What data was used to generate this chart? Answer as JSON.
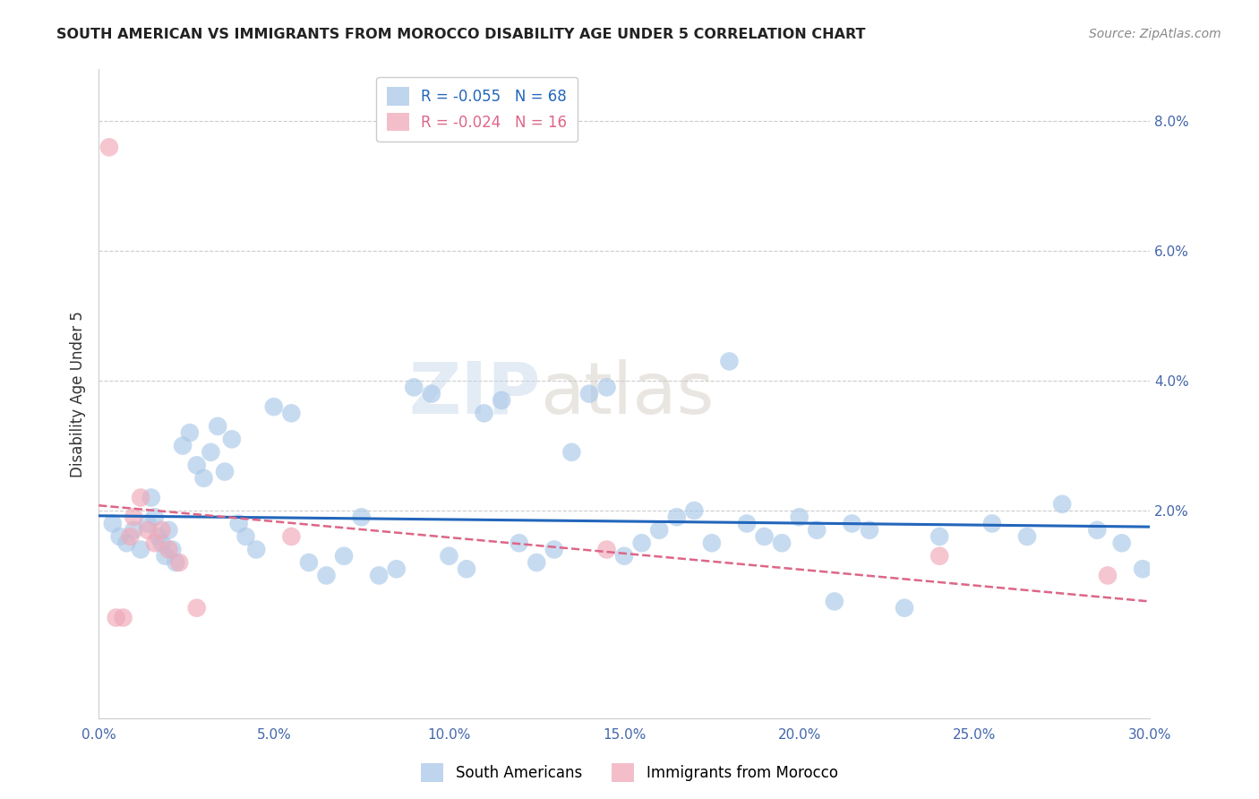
{
  "title": "SOUTH AMERICAN VS IMMIGRANTS FROM MOROCCO DISABILITY AGE UNDER 5 CORRELATION CHART",
  "source": "Source: ZipAtlas.com",
  "ylabel": "Disability Age Under 5",
  "x_tick_labels": [
    "0.0%",
    "5.0%",
    "10.0%",
    "15.0%",
    "20.0%",
    "25.0%",
    "30.0%"
  ],
  "x_tick_values": [
    0,
    5,
    10,
    15,
    20,
    25,
    30
  ],
  "y_tick_labels": [
    "2.0%",
    "4.0%",
    "6.0%",
    "8.0%"
  ],
  "y_tick_values": [
    2,
    4,
    6,
    8
  ],
  "xlim": [
    0,
    30
  ],
  "ylim": [
    -1.2,
    8.8
  ],
  "ymin_display": 0,
  "ymax_display": 8,
  "blue_R": -0.055,
  "blue_N": 68,
  "pink_R": -0.024,
  "pink_N": 16,
  "blue_color": "#aac8e8",
  "pink_color": "#f0a8b8",
  "blue_line_color": "#2266bb",
  "pink_line_color": "#dd6688",
  "legend_label_blue": "South Americans",
  "legend_label_pink": "Immigrants from Morocco",
  "watermark_zip": "ZIP",
  "watermark_atlas": "atlas",
  "blue_x": [
    0.4,
    0.6,
    0.8,
    1.0,
    1.2,
    1.4,
    1.5,
    1.6,
    1.7,
    1.8,
    1.9,
    2.0,
    2.1,
    2.2,
    2.4,
    2.6,
    2.8,
    3.0,
    3.2,
    3.4,
    3.6,
    3.8,
    4.0,
    4.2,
    4.5,
    5.0,
    5.5,
    6.0,
    6.5,
    7.0,
    7.5,
    8.0,
    8.5,
    9.0,
    9.5,
    10.0,
    10.5,
    11.0,
    11.5,
    12.0,
    12.5,
    13.0,
    13.5,
    14.0,
    14.5,
    15.0,
    15.5,
    16.0,
    16.5,
    17.0,
    17.5,
    18.0,
    18.5,
    19.0,
    19.5,
    20.0,
    20.5,
    21.0,
    21.5,
    22.0,
    23.0,
    24.0,
    25.5,
    26.5,
    27.5,
    28.5,
    29.2,
    29.8
  ],
  "blue_y": [
    1.8,
    1.6,
    1.5,
    1.7,
    1.4,
    1.8,
    2.2,
    1.9,
    1.6,
    1.5,
    1.3,
    1.7,
    1.4,
    1.2,
    3.0,
    3.2,
    2.7,
    2.5,
    2.9,
    3.3,
    2.6,
    3.1,
    1.8,
    1.6,
    1.4,
    3.6,
    3.5,
    1.2,
    1.0,
    1.3,
    1.9,
    1.0,
    1.1,
    3.9,
    3.8,
    1.3,
    1.1,
    3.5,
    3.7,
    1.5,
    1.2,
    1.4,
    2.9,
    3.8,
    3.9,
    1.3,
    1.5,
    1.7,
    1.9,
    2.0,
    1.5,
    4.3,
    1.8,
    1.6,
    1.5,
    1.9,
    1.7,
    0.6,
    1.8,
    1.7,
    0.5,
    1.6,
    1.8,
    1.6,
    2.1,
    1.7,
    1.5,
    1.1
  ],
  "pink_x": [
    0.3,
    0.5,
    0.7,
    0.9,
    1.0,
    1.2,
    1.4,
    1.6,
    1.8,
    2.0,
    2.3,
    2.8,
    5.5,
    14.5,
    24.0,
    28.8
  ],
  "pink_y": [
    7.6,
    0.35,
    0.35,
    1.6,
    1.9,
    2.2,
    1.7,
    1.5,
    1.7,
    1.4,
    1.2,
    0.5,
    1.6,
    1.4,
    1.3,
    1.0
  ]
}
